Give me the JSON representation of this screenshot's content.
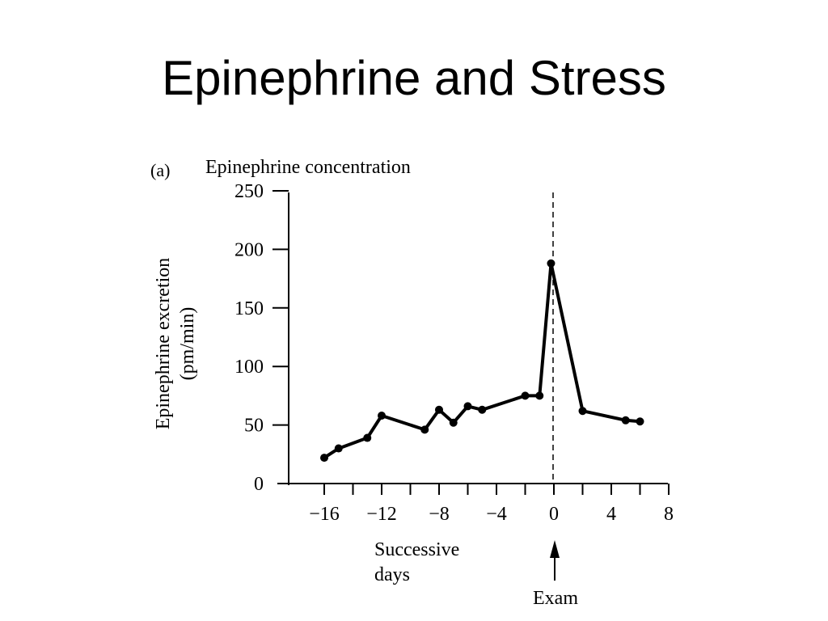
{
  "slide": {
    "title": "Epinephrine and Stress"
  },
  "chart_data": {
    "type": "line",
    "panel_label": "(a)",
    "title": "Epinephrine concentration",
    "xlabel": "Successive days",
    "ylabel": "Epinephrine excretion (pm/min)",
    "ylabel_lines": [
      "Epinephrine excretion",
      "(pm/min)"
    ],
    "xlabel_lines": [
      "Successive",
      "days"
    ],
    "xlim": [
      -18,
      8
    ],
    "ylim": [
      0,
      250
    ],
    "x_ticks": [
      -16,
      -12,
      -8,
      -4,
      0,
      4,
      8
    ],
    "x_tick_labels": [
      "−16",
      "−12",
      "−8",
      "−4",
      "0",
      "4",
      "8"
    ],
    "x_minor_ticks": [
      -14,
      -10,
      -6,
      -2,
      2,
      6
    ],
    "y_ticks": [
      0,
      50,
      100,
      150,
      200,
      250
    ],
    "y_tick_labels": [
      "0",
      "50",
      "100",
      "150",
      "200",
      "250"
    ],
    "grid": false,
    "series": [
      {
        "x": [
          -16,
          -15,
          -13,
          -12,
          -9,
          -8,
          -7,
          -6,
          -5,
          -2,
          -1,
          -0.2,
          2,
          5,
          6
        ],
        "y": [
          22,
          30,
          39,
          58,
          46,
          63,
          52,
          66,
          63,
          75,
          75,
          188,
          62,
          54,
          53
        ],
        "color": "#000000"
      }
    ],
    "annotations": [
      {
        "text": "Exam",
        "x": 0,
        "style": "dashed vertical line with upward arrow"
      }
    ]
  }
}
